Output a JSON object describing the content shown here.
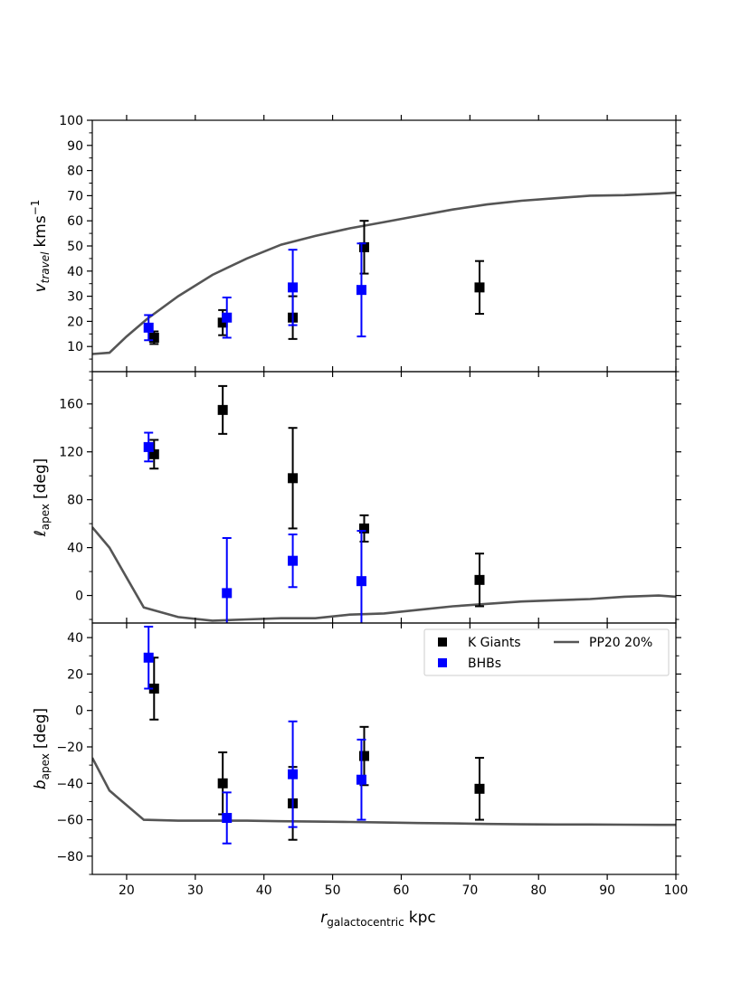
{
  "chart_data": {
    "type": "scatter",
    "xlabel_main": "r",
    "xlabel_sub": "galactocentric",
    "xlabel_unit": "kpc",
    "xlim": [
      15,
      100
    ],
    "xticks": [
      20,
      30,
      40,
      50,
      60,
      70,
      80,
      90,
      100
    ],
    "legend": {
      "position": "top-right of bottom panel",
      "entries": [
        {
          "label": "K Giants",
          "color": "#000000",
          "kind": "marker"
        },
        {
          "label": "BHBs",
          "color": "#0000ff",
          "kind": "marker"
        },
        {
          "label": "PP20 20%",
          "color": "#555555",
          "kind": "line"
        }
      ]
    },
    "panels": [
      {
        "id": "vtravel",
        "ylabel_main": "v",
        "ylabel_sub": "travel",
        "ylabel_unit": "kms",
        "ylabel_sup": "−1",
        "ylim": [
          0,
          100
        ],
        "yticks": [
          10,
          20,
          30,
          40,
          50,
          60,
          70,
          80,
          90,
          100
        ],
        "yminor": 5,
        "series": [
          {
            "name": "K Giants",
            "color": "#000000",
            "x": [
              24,
              34,
              44.2,
              54.6,
              71.4
            ],
            "y": [
              13.5,
              19.5,
              21.5,
              49.5,
              33.5
            ],
            "err": [
              2.5,
              5,
              8.5,
              10.5,
              10.5
            ]
          },
          {
            "name": "BHBs",
            "color": "#0000ff",
            "x": [
              23.2,
              34.6,
              44.2,
              54.2
            ],
            "y": [
              17.5,
              21.5,
              33.5,
              32.5
            ],
            "err": [
              5,
              8,
              15,
              18.5
            ]
          }
        ],
        "model": {
          "name": "PP20 20%",
          "x": [
            15,
            17.5,
            20,
            23,
            27.5,
            32.5,
            37.5,
            42.5,
            47.5,
            52.5,
            57.5,
            62.5,
            67.5,
            72.5,
            77.5,
            82.5,
            87.5,
            92.5,
            97.5,
            100
          ],
          "y": [
            7,
            7.5,
            14,
            21,
            30,
            38.5,
            45,
            50.5,
            54,
            57,
            59.5,
            62,
            64.5,
            66.5,
            68,
            69,
            70,
            70.2,
            70.8,
            71.2
          ]
        }
      },
      {
        "id": "lapex",
        "ylabel_main": "ℓ",
        "ylabel_sub": "apex",
        "ylabel_unit": "[deg]",
        "ylim": [
          -23,
          187
        ],
        "yticks": [
          0,
          40,
          80,
          120,
          160
        ],
        "yminor": 20,
        "series": [
          {
            "name": "K Giants",
            "color": "#000000",
            "x": [
              24,
              34,
              44.2,
              54.6,
              71.4
            ],
            "y": [
              118,
              155,
              98,
              56,
              13
            ],
            "err": [
              12,
              20,
              42,
              11,
              22
            ]
          },
          {
            "name": "BHBs",
            "color": "#0000ff",
            "x": [
              23.2,
              34.6,
              44.2,
              54.2
            ],
            "y": [
              124,
              2,
              29,
              12
            ],
            "err": [
              12,
              46,
              22,
              42
            ]
          }
        ],
        "model": {
          "name": "PP20 20%",
          "x": [
            15,
            17.5,
            20,
            22.5,
            27.5,
            32.5,
            37.5,
            42.5,
            47.5,
            52.5,
            57.5,
            62.5,
            67.5,
            72.5,
            77.5,
            82.5,
            87.5,
            92.5,
            97.5,
            100
          ],
          "y": [
            57,
            40,
            15,
            -10,
            -18,
            -21,
            -20,
            -19,
            -19,
            -16,
            -15,
            -12,
            -9,
            -7,
            -5,
            -4,
            -3,
            -1,
            0,
            -1
          ]
        }
      },
      {
        "id": "bapex",
        "ylabel_main": "b",
        "ylabel_sub": "apex",
        "ylabel_unit": "[deg]",
        "ylim": [
          -90,
          48
        ],
        "yticks": [
          -80,
          -60,
          -40,
          -20,
          0,
          20,
          40
        ],
        "yminor": 10,
        "series": [
          {
            "name": "K Giants",
            "color": "#000000",
            "x": [
              24,
              34,
              44.2,
              54.6,
              71.4
            ],
            "y": [
              12,
              -40,
              -51,
              -25,
              -43
            ],
            "err": [
              17,
              17,
              20,
              16,
              17
            ]
          },
          {
            "name": "BHBs",
            "color": "#0000ff",
            "x": [
              23.2,
              34.6,
              44.2,
              54.2
            ],
            "y": [
              29,
              -59,
              -35,
              -38
            ],
            "err": [
              17,
              14,
              29,
              22
            ]
          }
        ],
        "model": {
          "name": "PP20 20%",
          "x": [
            15,
            17.5,
            22.5,
            27.5,
            32.5,
            37.5,
            42.5,
            47.5,
            52.5,
            57.5,
            62.5,
            67.5,
            72.5,
            77.5,
            82.5,
            87.5,
            92.5,
            97.5,
            100
          ],
          "y": [
            -26,
            -44,
            -60,
            -60.5,
            -60.5,
            -60.5,
            -60.8,
            -61,
            -61.2,
            -61.5,
            -61.8,
            -62,
            -62.3,
            -62.5,
            -62.6,
            -62.6,
            -62.7,
            -62.8,
            -62.8
          ]
        }
      }
    ]
  }
}
